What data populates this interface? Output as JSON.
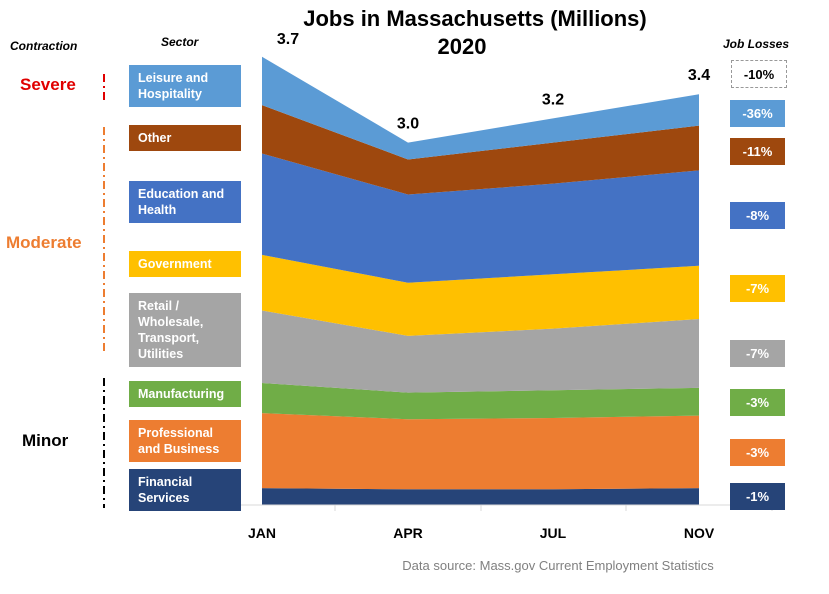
{
  "chart_data": {
    "type": "stacked-area",
    "title": "Jobs in Massachusetts (Millions)",
    "subtitle": "2020",
    "categories": [
      "JAN",
      "APR",
      "JUL",
      "NOV"
    ],
    "totals": [
      3.7,
      3.0,
      3.2,
      3.4
    ],
    "total_labels": [
      "3.7",
      "3.0",
      "3.2",
      "3.4"
    ],
    "contraction_header": "Contraction",
    "sector_header": "Sector",
    "job_loss_header": "Job Losses",
    "total_job_loss": -10,
    "total_job_loss_label": "-10%",
    "contraction_groups": [
      {
        "label": "Severe",
        "color": "#e00000"
      },
      {
        "label": "Moderate",
        "color": "#ed7d31"
      },
      {
        "label": "Minor",
        "color": "#000000"
      }
    ],
    "series": [
      {
        "name": "Financial Services",
        "color": "#264478",
        "values": [
          0.14,
          0.13,
          0.13,
          0.14
        ],
        "job_loss": -1,
        "job_loss_label": "-1%"
      },
      {
        "name": "Professional and Business",
        "color": "#ed7d31",
        "values": [
          0.62,
          0.58,
          0.59,
          0.6
        ],
        "job_loss": -3,
        "job_loss_label": "-3%"
      },
      {
        "name": "Manufacturing",
        "color": "#70ad47",
        "values": [
          0.25,
          0.22,
          0.23,
          0.23
        ],
        "job_loss": -3,
        "job_loss_label": "-3%"
      },
      {
        "name": "Retail / Wholesale, Transport, Utilities",
        "color": "#a5a5a5",
        "values": [
          0.6,
          0.47,
          0.51,
          0.57
        ],
        "job_loss": -7,
        "job_loss_label": "-7%"
      },
      {
        "name": "Government",
        "color": "#ffc000",
        "values": [
          0.46,
          0.44,
          0.45,
          0.44
        ],
        "job_loss": -7,
        "job_loss_label": "-7%"
      },
      {
        "name": "Education and Health",
        "color": "#4472c4",
        "values": [
          0.84,
          0.73,
          0.75,
          0.79
        ],
        "job_loss": -8,
        "job_loss_label": "-8%"
      },
      {
        "name": "Other",
        "color": "#9e480e",
        "values": [
          0.4,
          0.29,
          0.34,
          0.37
        ],
        "job_loss": -11,
        "job_loss_label": "-11%"
      },
      {
        "name": "Leisure and Hospitality",
        "color": "#5b9bd5",
        "values": [
          0.4,
          0.14,
          0.2,
          0.26
        ],
        "job_loss": -36,
        "job_loss_label": "-36%"
      }
    ],
    "source": "Data source: Mass.gov Current Employment Statistics"
  }
}
